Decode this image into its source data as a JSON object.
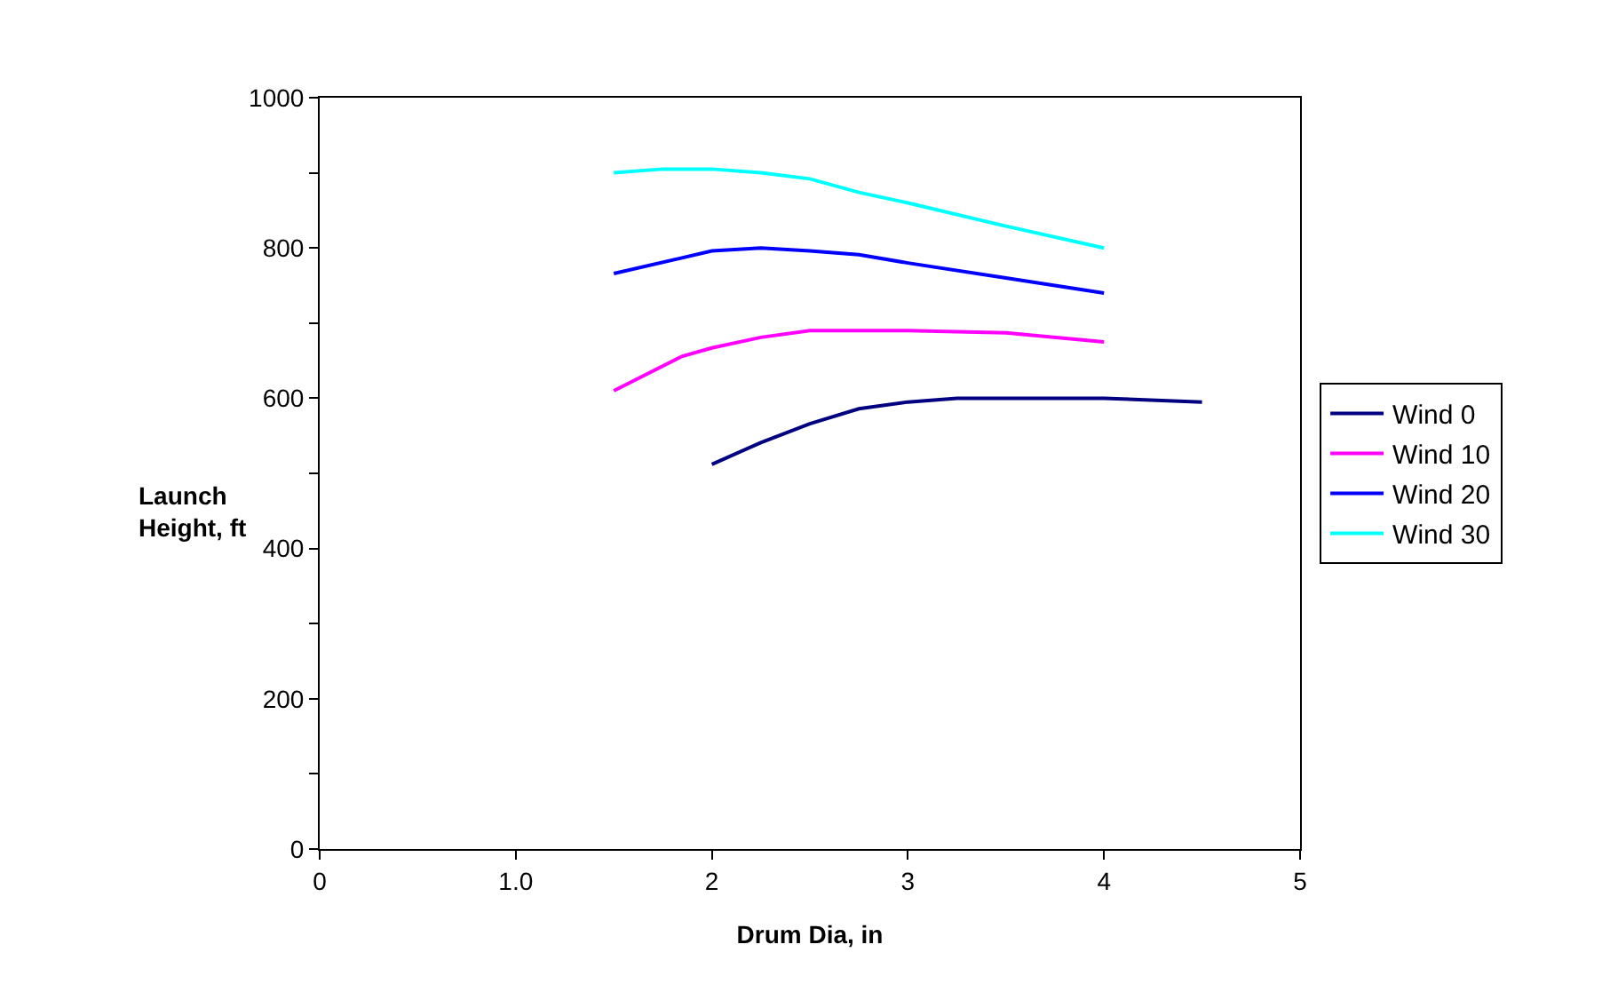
{
  "chart_data": {
    "type": "line",
    "xlabel": "Drum Dia, in",
    "ylabel": "Launch\nHeight, ft",
    "xlim": [
      0,
      5
    ],
    "xticks": [
      0,
      {
        "value": 1,
        "label": "1.0"
      },
      2,
      3,
      4,
      5
    ],
    "ylim": [
      0,
      1000
    ],
    "yticks": [
      0,
      {
        "value": 100,
        "label": null
      },
      200,
      {
        "value": 300,
        "label": null
      },
      400,
      {
        "value": 500,
        "label": null
      },
      600,
      {
        "value": 700,
        "label": null
      },
      800,
      {
        "value": 900,
        "label": null
      },
      1000
    ],
    "legend": "right",
    "marker": "none",
    "line_style": "solid",
    "series": [
      {
        "name": "Wind 0",
        "color": "#000080",
        "x": [
          2.0,
          2.25,
          2.5,
          2.75,
          3.0,
          3.25,
          4.0,
          4.5
        ],
        "values": [
          512,
          541,
          566,
          586,
          595,
          600,
          600,
          595
        ]
      },
      {
        "name": "Wind 10",
        "color": "#ff00ff",
        "x": [
          1.5,
          1.85,
          2.0,
          2.25,
          2.5,
          3.0,
          3.5,
          4.0
        ],
        "values": [
          610,
          656,
          667,
          681,
          690,
          690,
          687,
          675
        ]
      },
      {
        "name": "Wind 20",
        "color": "#0000ff",
        "x": [
          1.5,
          2.0,
          2.25,
          2.5,
          2.75,
          3.0,
          3.5,
          4.0
        ],
        "values": [
          766,
          796,
          800,
          796,
          791,
          780,
          760,
          740
        ]
      },
      {
        "name": "Wind 30",
        "color": "#00ffff",
        "x": [
          1.5,
          1.75,
          2.0,
          2.25,
          2.5,
          2.75,
          3.0,
          3.5,
          4.0
        ],
        "values": [
          900,
          905,
          905,
          900,
          892,
          874,
          860,
          829,
          800
        ]
      }
    ]
  }
}
